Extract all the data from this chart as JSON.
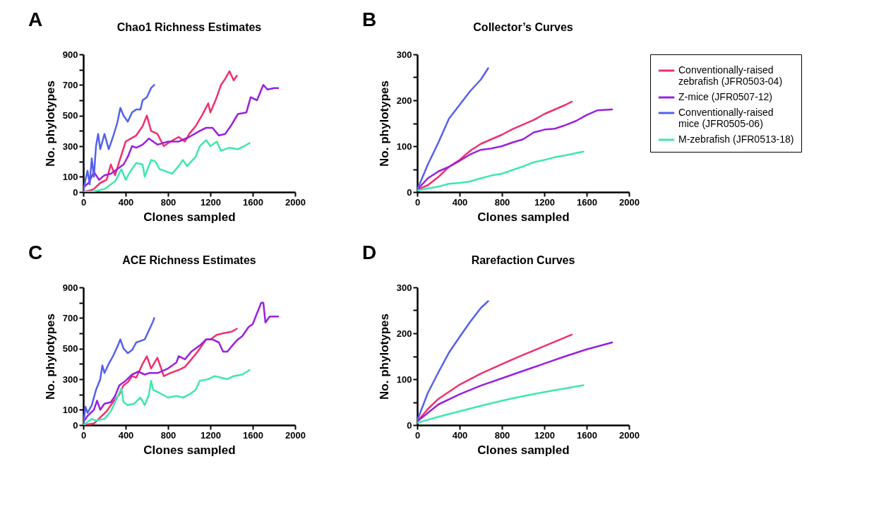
{
  "chart_data": [
    {
      "type": "line",
      "title": "Chao1 Richness Estimates",
      "xlabel": "Clones sampled",
      "ylabel": "No. phylotypes",
      "annotations": [
        "A"
      ],
      "xlim": [
        0,
        2000
      ],
      "ylim": [
        0,
        900
      ],
      "xticks": [
        0,
        400,
        800,
        1200,
        1600,
        2000
      ],
      "yticks": [
        0,
        100,
        {
          "value": 200,
          "label": null
        },
        300,
        {
          "value": 400,
          "label": null
        },
        500,
        {
          "value": 600,
          "label": null
        },
        700,
        {
          "value": 800,
          "label": null
        },
        900
      ],
      "series": [
        {
          "color": "#f0306e",
          "x": [
            0,
            60,
            100,
            160,
            220,
            260,
            300,
            340,
            400,
            450,
            500,
            560,
            600,
            640,
            700,
            760,
            800,
            900,
            960,
            1000,
            1060,
            1120,
            1180,
            1200,
            1260,
            1300,
            1340,
            1380,
            1420,
            1450
          ],
          "values": [
            0,
            10,
            20,
            60,
            80,
            180,
            110,
            200,
            330,
            350,
            370,
            430,
            500,
            400,
            380,
            300,
            320,
            360,
            330,
            380,
            430,
            500,
            580,
            520,
            620,
            700,
            740,
            790,
            730,
            760
          ]
        },
        {
          "color": "#9a1fe0",
          "x": [
            0,
            50,
            100,
            150,
            200,
            260,
            320,
            380,
            420,
            460,
            500,
            560,
            620,
            700,
            800,
            900,
            1000,
            1100,
            1160,
            1220,
            1280,
            1340,
            1400,
            1460,
            1540,
            1580,
            1640,
            1700,
            1740,
            1800,
            1840
          ],
          "values": [
            30,
            60,
            130,
            80,
            110,
            120,
            150,
            180,
            230,
            300,
            290,
            310,
            350,
            310,
            330,
            330,
            360,
            400,
            420,
            420,
            370,
            380,
            440,
            510,
            520,
            620,
            600,
            700,
            670,
            680,
            680
          ]
        },
        {
          "color": "#5560f0",
          "x": [
            0,
            20,
            40,
            60,
            80,
            100,
            120,
            140,
            160,
            200,
            240,
            280,
            320,
            350,
            380,
            420,
            460,
            500,
            540,
            560,
            600,
            640,
            670
          ],
          "values": [
            0,
            80,
            140,
            50,
            220,
            100,
            300,
            380,
            280,
            380,
            280,
            360,
            450,
            550,
            500,
            460,
            520,
            540,
            540,
            600,
            620,
            680,
            700
          ]
        },
        {
          "color": "#3de8b0",
          "x": [
            0,
            100,
            200,
            300,
            360,
            400,
            440,
            500,
            560,
            580,
            640,
            680,
            720,
            800,
            840,
            900,
            940,
            980,
            1060,
            1100,
            1160,
            1200,
            1260,
            1300,
            1380,
            1460,
            1520,
            1570
          ],
          "values": [
            0,
            5,
            20,
            70,
            150,
            80,
            130,
            190,
            180,
            100,
            210,
            200,
            150,
            130,
            120,
            170,
            210,
            170,
            230,
            300,
            340,
            300,
            330,
            270,
            290,
            280,
            300,
            320
          ]
        }
      ]
    },
    {
      "type": "line",
      "title": "Collector’s Curves",
      "xlabel": "Clones sampled",
      "ylabel": "No. phylotypes",
      "annotations": [
        "B"
      ],
      "legend": "right",
      "xlim": [
        0,
        2000
      ],
      "ylim": [
        0,
        300
      ],
      "xticks": [
        0,
        400,
        800,
        1200,
        1600,
        2000
      ],
      "yticks": [
        0,
        {
          "value": 50,
          "label": null
        },
        100,
        {
          "value": 150,
          "label": null
        },
        200,
        {
          "value": 250,
          "label": null
        },
        300
      ],
      "series": [
        {
          "name": "Conventionally-raised zebrafish (JFR0503-04)",
          "color": "#f0306e",
          "x": [
            0,
            100,
            200,
            300,
            400,
            500,
            600,
            700,
            800,
            900,
            1000,
            1100,
            1200,
            1300,
            1400,
            1460
          ],
          "values": [
            5,
            15,
            33,
            55,
            70,
            90,
            105,
            115,
            125,
            137,
            147,
            157,
            170,
            180,
            190,
            197
          ]
        },
        {
          "name": "Z-mice (JFR0507-12)",
          "color": "#9a1fe0",
          "x": [
            0,
            100,
            200,
            300,
            400,
            500,
            600,
            700,
            800,
            900,
            1000,
            1100,
            1200,
            1300,
            1400,
            1500,
            1600,
            1700,
            1840
          ],
          "values": [
            5,
            30,
            45,
            55,
            68,
            82,
            92,
            95,
            100,
            108,
            115,
            130,
            136,
            138,
            146,
            155,
            168,
            178,
            180
          ]
        },
        {
          "name": "Conventionally-raised mice (JFR0505-06)",
          "color": "#5560f0",
          "x": [
            0,
            100,
            200,
            300,
            400,
            500,
            600,
            670
          ],
          "values": [
            5,
            60,
            108,
            160,
            190,
            220,
            245,
            270
          ]
        },
        {
          "name": "M-zebrafish (JFR0513-18)",
          "color": "#3de8b0",
          "x": [
            0,
            100,
            200,
            300,
            400,
            500,
            600,
            700,
            800,
            900,
            1000,
            1100,
            1200,
            1300,
            1400,
            1500,
            1570
          ],
          "values": [
            3,
            8,
            12,
            18,
            20,
            23,
            30,
            36,
            40,
            48,
            56,
            65,
            70,
            76,
            80,
            85,
            88
          ]
        }
      ]
    },
    {
      "type": "line",
      "title": "ACE Richness Estimates",
      "xlabel": "Clones sampled",
      "ylabel": "No. phylotypes",
      "annotations": [
        "C"
      ],
      "xlim": [
        0,
        2000
      ],
      "ylim": [
        0,
        900
      ],
      "xticks": [
        0,
        400,
        800,
        1200,
        1600,
        2000
      ],
      "yticks": [
        0,
        100,
        {
          "value": 200,
          "label": null
        },
        300,
        {
          "value": 400,
          "label": null
        },
        500,
        {
          "value": 600,
          "label": null
        },
        700,
        {
          "value": 800,
          "label": null
        },
        900
      ],
      "series": [
        {
          "color": "#f0306e",
          "x": [
            0,
            100,
            160,
            220,
            280,
            340,
            380,
            420,
            460,
            500,
            560,
            600,
            640,
            700,
            760,
            820,
            900,
            960,
            1020,
            1080,
            1160,
            1200,
            1260,
            1320,
            1400,
            1450
          ],
          "values": [
            0,
            10,
            50,
            90,
            150,
            200,
            260,
            280,
            320,
            310,
            400,
            450,
            370,
            440,
            320,
            340,
            360,
            380,
            430,
            480,
            560,
            560,
            590,
            600,
            610,
            630
          ]
        },
        {
          "color": "#9a1fe0",
          "x": [
            0,
            40,
            100,
            130,
            160,
            200,
            260,
            300,
            340,
            400,
            460,
            520,
            580,
            620,
            700,
            800,
            880,
            900,
            960,
            1020,
            1100,
            1160,
            1220,
            1280,
            1320,
            1360,
            1420,
            1460,
            1500,
            1560,
            1600,
            1640,
            1680,
            1700,
            1720,
            1760,
            1840
          ],
          "values": [
            20,
            60,
            100,
            160,
            100,
            140,
            150,
            190,
            260,
            290,
            330,
            350,
            330,
            340,
            340,
            370,
            410,
            450,
            430,
            480,
            520,
            560,
            560,
            540,
            480,
            480,
            530,
            560,
            580,
            640,
            660,
            730,
            800,
            800,
            670,
            710,
            710
          ]
        },
        {
          "color": "#5560f0",
          "x": [
            0,
            20,
            40,
            80,
            120,
            160,
            180,
            200,
            240,
            280,
            320,
            350,
            380,
            420,
            460,
            500,
            540,
            580,
            620,
            660,
            670
          ],
          "values": [
            0,
            120,
            80,
            130,
            230,
            300,
            390,
            340,
            400,
            450,
            510,
            560,
            500,
            470,
            490,
            540,
            550,
            560,
            620,
            680,
            700
          ]
        },
        {
          "color": "#3de8b0",
          "x": [
            0,
            80,
            120,
            200,
            260,
            320,
            360,
            380,
            420,
            480,
            540,
            580,
            620,
            640,
            660,
            720,
            800,
            880,
            940,
            1000,
            1060,
            1100,
            1180,
            1240,
            1300,
            1360,
            1420,
            1500,
            1570
          ],
          "values": [
            0,
            40,
            30,
            40,
            90,
            180,
            240,
            150,
            130,
            140,
            180,
            130,
            200,
            290,
            230,
            210,
            180,
            190,
            180,
            200,
            230,
            290,
            300,
            320,
            310,
            300,
            320,
            330,
            360
          ]
        }
      ]
    },
    {
      "type": "line",
      "title": "Rarefaction Curves",
      "xlabel": "Clones sampled",
      "ylabel": "No. phylotypes",
      "annotations": [
        "D"
      ],
      "xlim": [
        0,
        2000
      ],
      "ylim": [
        0,
        300
      ],
      "xticks": [
        0,
        400,
        800,
        1200,
        1600,
        2000
      ],
      "yticks": [
        0,
        {
          "value": 50,
          "label": null
        },
        100,
        {
          "value": 150,
          "label": null
        },
        200,
        {
          "value": 250,
          "label": null
        },
        300
      ],
      "series": [
        {
          "color": "#f0306e",
          "x": [
            0,
            100,
            200,
            400,
            600,
            800,
            1000,
            1200,
            1460
          ],
          "values": [
            8,
            35,
            57,
            88,
            112,
            133,
            153,
            172,
            197
          ]
        },
        {
          "color": "#9a1fe0",
          "x": [
            0,
            200,
            400,
            600,
            800,
            1000,
            1200,
            1400,
            1600,
            1840
          ],
          "values": [
            8,
            45,
            67,
            86,
            102,
            118,
            134,
            150,
            165,
            180
          ]
        },
        {
          "color": "#5560f0",
          "x": [
            0,
            100,
            200,
            300,
            400,
            500,
            600,
            670
          ],
          "values": [
            10,
            70,
            115,
            158,
            192,
            225,
            255,
            270
          ]
        },
        {
          "color": "#3de8b0",
          "x": [
            0,
            200,
            400,
            600,
            800,
            1000,
            1200,
            1400,
            1570
          ],
          "values": [
            5,
            18,
            30,
            42,
            53,
            63,
            72,
            80,
            87
          ]
        }
      ]
    }
  ]
}
